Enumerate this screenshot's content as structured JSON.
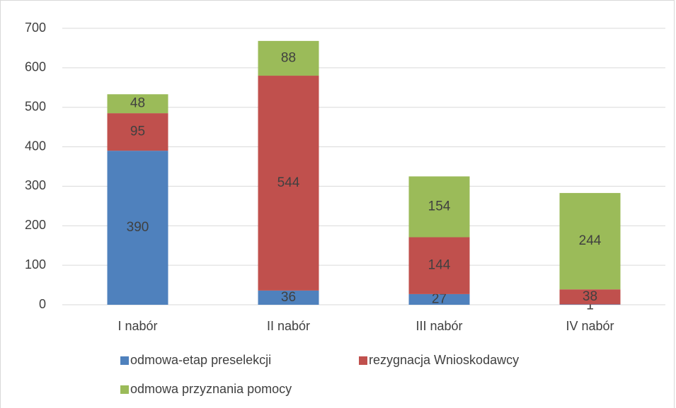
{
  "chart_data": {
    "type": "stacked_bar",
    "categories": [
      "I nabór",
      "II nabór",
      "III nabór",
      "IV nabór"
    ],
    "series": [
      {
        "name": "odmowa-etap preselekcji",
        "color": "#4f81bd",
        "values": [
          390,
          36,
          27,
          1
        ]
      },
      {
        "name": "rezygnacja Wnioskodawcy",
        "color": "#c0504d",
        "values": [
          95,
          544,
          144,
          38
        ]
      },
      {
        "name": "odmowa przyznania pomocy",
        "color": "#9bbb59",
        "values": [
          48,
          88,
          154,
          244
        ]
      }
    ],
    "ylim": [
      0,
      700
    ],
    "yticks": [
      0,
      100,
      200,
      300,
      400,
      500,
      600,
      700
    ],
    "grid": true
  }
}
